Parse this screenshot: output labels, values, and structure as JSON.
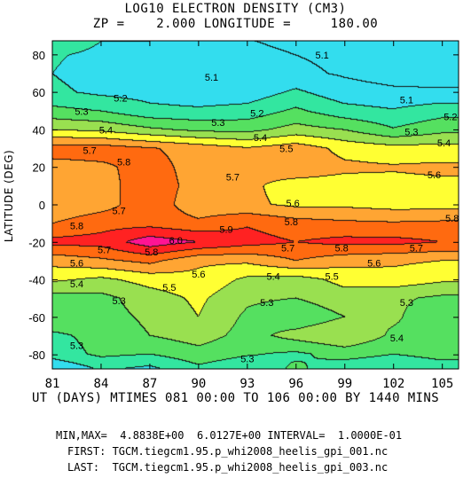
{
  "chart_data": {
    "type": "heatmap",
    "title": "LOG10 ELECTRON DENSITY (CM3)",
    "subtitle": "ZP =    2.000 LONGITUDE =     180.00",
    "xlabel": "UT (DAYS) MTIMES 081 00:00 TO 106 00:00 BY 1440 MINS",
    "ylabel": "LATITUDE (DEG)",
    "xlim": [
      81,
      106
    ],
    "ylim": [
      -87.5,
      87.5
    ],
    "xticks": [
      81,
      84,
      87,
      90,
      93,
      96,
      99,
      102,
      105
    ],
    "yticks": [
      -80,
      -60,
      -40,
      -20,
      0,
      20,
      40,
      60,
      80
    ],
    "contour_interval": 0.1,
    "colormap": {
      "thresholds": [
        5.2,
        5.3,
        5.4,
        5.5,
        5.6,
        5.7,
        5.8,
        5.9
      ],
      "colors": [
        "#33ddee",
        "#33e6a0",
        "#55e060",
        "#99e050",
        "#ffff33",
        "#ffa533",
        "#ff6a10",
        "#ff2222",
        "#ff1493"
      ]
    },
    "grid": {
      "x": [
        81,
        84,
        87,
        90,
        93,
        96,
        99,
        102,
        105,
        106
      ],
      "y": [
        -87.5,
        -80,
        -70,
        -60,
        -50,
        -40,
        -30,
        -20,
        -10,
        0,
        10,
        20,
        30,
        40,
        50,
        60,
        70,
        80,
        87.5
      ],
      "z": [
        [
          5.1,
          5.22,
          5.18,
          5.28,
          5.22,
          5.32,
          5.24,
          5.22,
          5.26,
          5.26
        ],
        [
          5.25,
          5.32,
          5.3,
          5.36,
          5.31,
          5.28,
          5.34,
          5.3,
          5.33,
          5.33
        ],
        [
          5.28,
          5.33,
          5.4,
          5.45,
          5.36,
          5.44,
          5.5,
          5.38,
          5.36,
          5.36
        ],
        [
          5.38,
          5.36,
          5.42,
          5.5,
          5.38,
          5.32,
          5.4,
          5.42,
          5.32,
          5.32
        ],
        [
          5.36,
          5.37,
          5.45,
          5.52,
          5.42,
          5.4,
          5.46,
          5.42,
          5.38,
          5.38
        ],
        [
          5.52,
          5.48,
          5.54,
          5.57,
          5.48,
          5.46,
          5.53,
          5.56,
          5.52,
          5.52
        ],
        [
          5.64,
          5.68,
          5.73,
          5.62,
          5.62,
          5.7,
          5.64,
          5.62,
          5.6,
          5.6
        ],
        [
          5.83,
          5.84,
          5.96,
          5.9,
          5.84,
          5.8,
          5.83,
          5.83,
          5.8,
          5.8
        ],
        [
          5.7,
          5.76,
          5.76,
          5.72,
          5.79,
          5.74,
          5.72,
          5.71,
          5.72,
          5.72
        ],
        [
          5.62,
          5.66,
          5.76,
          5.64,
          5.62,
          5.58,
          5.58,
          5.56,
          5.56,
          5.56
        ],
        [
          5.62,
          5.66,
          5.76,
          5.66,
          5.62,
          5.56,
          5.56,
          5.57,
          5.58,
          5.58
        ],
        [
          5.66,
          5.68,
          5.74,
          5.66,
          5.62,
          5.66,
          5.62,
          5.61,
          5.62,
          5.62
        ],
        [
          5.75,
          5.75,
          5.71,
          5.66,
          5.61,
          5.66,
          5.57,
          5.54,
          5.54,
          5.54
        ],
        [
          5.5,
          5.48,
          5.42,
          5.38,
          5.37,
          5.44,
          5.4,
          5.31,
          5.37,
          5.37
        ],
        [
          5.33,
          5.3,
          5.23,
          5.22,
          5.24,
          5.32,
          5.24,
          5.21,
          5.26,
          5.26
        ],
        [
          5.22,
          5.18,
          5.16,
          5.13,
          5.14,
          5.22,
          5.14,
          5.12,
          5.12,
          5.12
        ],
        [
          5.2,
          5.16,
          5.12,
          5.1,
          5.12,
          5.12,
          5.09,
          5.06,
          5.04,
          5.04
        ],
        [
          5.21,
          5.18,
          5.15,
          5.15,
          5.16,
          5.1,
          5.08,
          5.04,
          5.02,
          5.02
        ],
        [
          5.26,
          5.2,
          5.2,
          5.15,
          5.11,
          5.05,
          5.04,
          5.02,
          5.02,
          5.02
        ]
      ]
    },
    "annotations": [
      {
        "text": "5.1",
        "x": 97.6,
        "y": 80
      },
      {
        "text": "5.1",
        "x": 90.8,
        "y": 68
      },
      {
        "text": "5.1",
        "x": 102.8,
        "y": 56
      },
      {
        "text": "5.2",
        "x": 85.2,
        "y": 57
      },
      {
        "text": "5.2",
        "x": 93.6,
        "y": 49
      },
      {
        "text": "5.2",
        "x": 105.5,
        "y": 47
      },
      {
        "text": "5.3",
        "x": 82.8,
        "y": 50
      },
      {
        "text": "5.3",
        "x": 91.2,
        "y": 44
      },
      {
        "text": "5.3",
        "x": 103.1,
        "y": 39
      },
      {
        "text": "5.4",
        "x": 84.3,
        "y": 40
      },
      {
        "text": "5.4",
        "x": 93.8,
        "y": 36
      },
      {
        "text": "5.4",
        "x": 105.1,
        "y": 33
      },
      {
        "text": "5.5",
        "x": 95.4,
        "y": 30
      },
      {
        "text": "5.7",
        "x": 83.3,
        "y": 29
      },
      {
        "text": "5.8",
        "x": 85.4,
        "y": 23
      },
      {
        "text": "5.7",
        "x": 92.1,
        "y": 15
      },
      {
        "text": "5.6",
        "x": 104.5,
        "y": 16
      },
      {
        "text": "5.6",
        "x": 95.8,
        "y": 1
      },
      {
        "text": "5.7",
        "x": 85.1,
        "y": -3
      },
      {
        "text": "5.8",
        "x": 105.6,
        "y": -7
      },
      {
        "text": "5.8",
        "x": 82.5,
        "y": -11
      },
      {
        "text": "5.8",
        "x": 95.7,
        "y": -9
      },
      {
        "text": "5.9",
        "x": 91.7,
        "y": -13
      },
      {
        "text": "6.0",
        "x": 88.6,
        "y": -19
      },
      {
        "text": "5.7",
        "x": 84.2,
        "y": -24
      },
      {
        "text": "5.8",
        "x": 87.1,
        "y": -25
      },
      {
        "text": "5.7",
        "x": 95.5,
        "y": -23
      },
      {
        "text": "5.8",
        "x": 98.8,
        "y": -23
      },
      {
        "text": "5.7",
        "x": 103.4,
        "y": -23
      },
      {
        "text": "5.6",
        "x": 82.5,
        "y": -31
      },
      {
        "text": "5.6",
        "x": 90.0,
        "y": -37
      },
      {
        "text": "5.6",
        "x": 100.8,
        "y": -31
      },
      {
        "text": "5.5",
        "x": 88.2,
        "y": -44
      },
      {
        "text": "5.5",
        "x": 98.2,
        "y": -38
      },
      {
        "text": "5.4",
        "x": 82.5,
        "y": -42
      },
      {
        "text": "5.4",
        "x": 94.6,
        "y": -38
      },
      {
        "text": "5.3",
        "x": 85.1,
        "y": -51
      },
      {
        "text": "5.3",
        "x": 94.2,
        "y": -52
      },
      {
        "text": "5.3",
        "x": 102.8,
        "y": -52
      },
      {
        "text": "5.3",
        "x": 82.5,
        "y": -75
      },
      {
        "text": "5.3",
        "x": 93.0,
        "y": -82
      },
      {
        "text": "5.4",
        "x": 102.2,
        "y": -71
      }
    ]
  },
  "footer": {
    "minmax": "MIN,MAX=  4.8838E+00  6.0127E+00 INTERVAL=  1.0000E-01",
    "first": "FIRST: TGCM.tiegcm1.95.p_whi2008_heelis_gpi_001.nc",
    "last": "LAST:  TGCM.tiegcm1.95.p_whi2008_heelis_gpi_003.nc"
  }
}
